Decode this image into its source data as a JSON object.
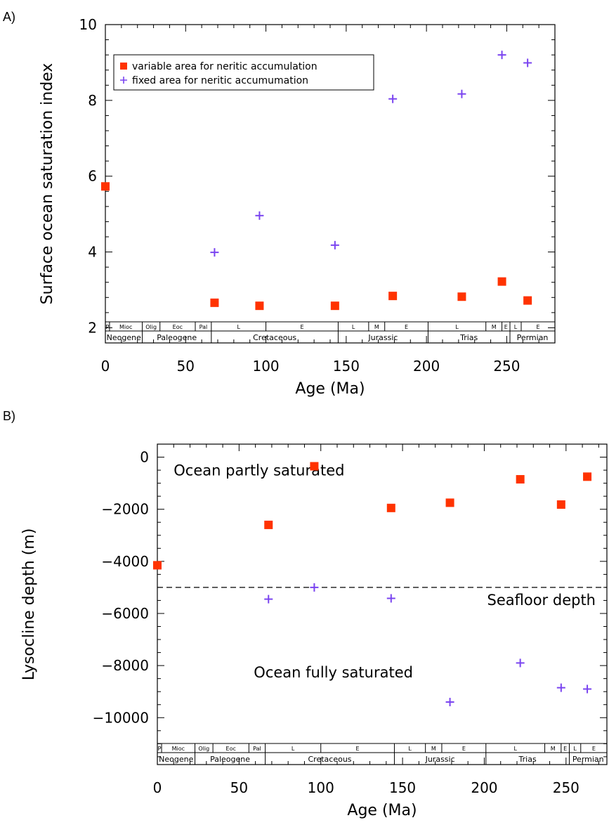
{
  "panel_labels": {
    "a": "A)",
    "b": "B)"
  },
  "colors": {
    "square": "#ff3300",
    "plus": "#7a44f0",
    "axis": "#000000"
  },
  "chart_data": [
    {
      "type": "scatter",
      "xlabel": "Age (Ma)",
      "ylabel": "Surface ocean saturation index",
      "xlim": [
        0,
        280
      ],
      "ylim": [
        1.6,
        10
      ],
      "x_ticks": [
        0,
        50,
        100,
        150,
        200,
        250
      ],
      "y_ticks": [
        2,
        4,
        6,
        8,
        10
      ],
      "legend_position": "top-left",
      "series": [
        {
          "name": "variable area for neritic accumulation",
          "marker": "square",
          "x": [
            0,
            68,
            96,
            143,
            179,
            222,
            247,
            263
          ],
          "y": [
            5.73,
            2.66,
            2.58,
            2.58,
            2.84,
            2.82,
            3.22,
            2.72
          ]
        },
        {
          "name": "fixed area for neritic accumumation",
          "marker": "plus",
          "x": [
            68,
            96,
            143,
            179,
            222,
            247,
            263
          ],
          "y": [
            3.99,
            4.96,
            4.18,
            8.04,
            8.17,
            9.2,
            8.99
          ]
        }
      ],
      "timescale": {
        "periods": [
          {
            "label": "P",
            "start": 0,
            "end": 2.6
          },
          {
            "label": "Mioc",
            "start": 2.6,
            "end": 23
          },
          {
            "label": "Olig",
            "start": 23,
            "end": 34
          },
          {
            "label": "Eoc",
            "start": 34,
            "end": 56
          },
          {
            "label": "Pal",
            "start": 56,
            "end": 66
          },
          {
            "label": "L",
            "start": 66,
            "end": 100
          },
          {
            "label": "E",
            "start": 100,
            "end": 145
          },
          {
            "label": "L",
            "start": 145,
            "end": 164
          },
          {
            "label": "M",
            "start": 164,
            "end": 174
          },
          {
            "label": "E",
            "start": 174,
            "end": 201
          },
          {
            "label": "L",
            "start": 201,
            "end": 237
          },
          {
            "label": "M",
            "start": 237,
            "end": 247
          },
          {
            "label": "E",
            "start": 247,
            "end": 252
          },
          {
            "label": "L",
            "start": 252,
            "end": 259
          },
          {
            "label": "E",
            "start": 259,
            "end": 280
          }
        ],
        "eras": [
          {
            "label": "Neogene",
            "start": 0,
            "end": 23
          },
          {
            "label": "Paleogene",
            "start": 23,
            "end": 66
          },
          {
            "label": "Cretaceous",
            "start": 66,
            "end": 145
          },
          {
            "label": "Jurassic",
            "start": 145,
            "end": 201
          },
          {
            "label": "Trias",
            "start": 201,
            "end": 252
          },
          {
            "label": "Permian",
            "start": 252,
            "end": 280
          }
        ]
      }
    },
    {
      "type": "scatter",
      "xlabel": "Age (Ma)",
      "ylabel": "Lysocline depth (m)",
      "xlim": [
        0,
        275
      ],
      "ylim": [
        -11800,
        500
      ],
      "x_ticks": [
        0,
        50,
        100,
        150,
        200,
        250
      ],
      "y_ticks": [
        0,
        -2000,
        -4000,
        -6000,
        -8000,
        -10000
      ],
      "reference_line": {
        "y": -5000,
        "style": "dashed",
        "label": "Seafloor depth"
      },
      "annotations": [
        {
          "text": "Ocean partly saturated",
          "x": 10,
          "y": -700
        },
        {
          "text": "Ocean fully saturated",
          "x": 59,
          "y": -8450
        }
      ],
      "series": [
        {
          "marker": "square",
          "x": [
            0,
            68,
            96,
            143,
            179,
            222,
            247,
            263
          ],
          "y": [
            -4150,
            -2600,
            -350,
            -1950,
            -1750,
            -850,
            -1820,
            -750
          ]
        },
        {
          "marker": "plus",
          "x": [
            68,
            96,
            143,
            179,
            222,
            247,
            263
          ],
          "y": [
            -5450,
            -5000,
            -5420,
            -9400,
            -7900,
            -8850,
            -8900
          ]
        }
      ],
      "timescale": {
        "periods": [
          {
            "label": "P",
            "start": 0,
            "end": 2.6
          },
          {
            "label": "Mioc",
            "start": 2.6,
            "end": 23
          },
          {
            "label": "Olig",
            "start": 23,
            "end": 34
          },
          {
            "label": "Eoc",
            "start": 34,
            "end": 56
          },
          {
            "label": "Pal",
            "start": 56,
            "end": 66
          },
          {
            "label": "L",
            "start": 66,
            "end": 100
          },
          {
            "label": "E",
            "start": 100,
            "end": 145
          },
          {
            "label": "L",
            "start": 145,
            "end": 164
          },
          {
            "label": "M",
            "start": 164,
            "end": 174
          },
          {
            "label": "E",
            "start": 174,
            "end": 201
          },
          {
            "label": "L",
            "start": 201,
            "end": 237
          },
          {
            "label": "M",
            "start": 237,
            "end": 247
          },
          {
            "label": "E",
            "start": 247,
            "end": 252
          },
          {
            "label": "L",
            "start": 252,
            "end": 259
          },
          {
            "label": "E",
            "start": 259,
            "end": 275
          }
        ],
        "eras": [
          {
            "label": "Neogene",
            "start": 0,
            "end": 23
          },
          {
            "label": "Paleogene",
            "start": 23,
            "end": 66
          },
          {
            "label": "Cretaceous",
            "start": 66,
            "end": 145
          },
          {
            "label": "Jurassic",
            "start": 145,
            "end": 201
          },
          {
            "label": "Trias",
            "start": 201,
            "end": 252
          },
          {
            "label": "Permian",
            "start": 252,
            "end": 275
          }
        ]
      }
    }
  ]
}
